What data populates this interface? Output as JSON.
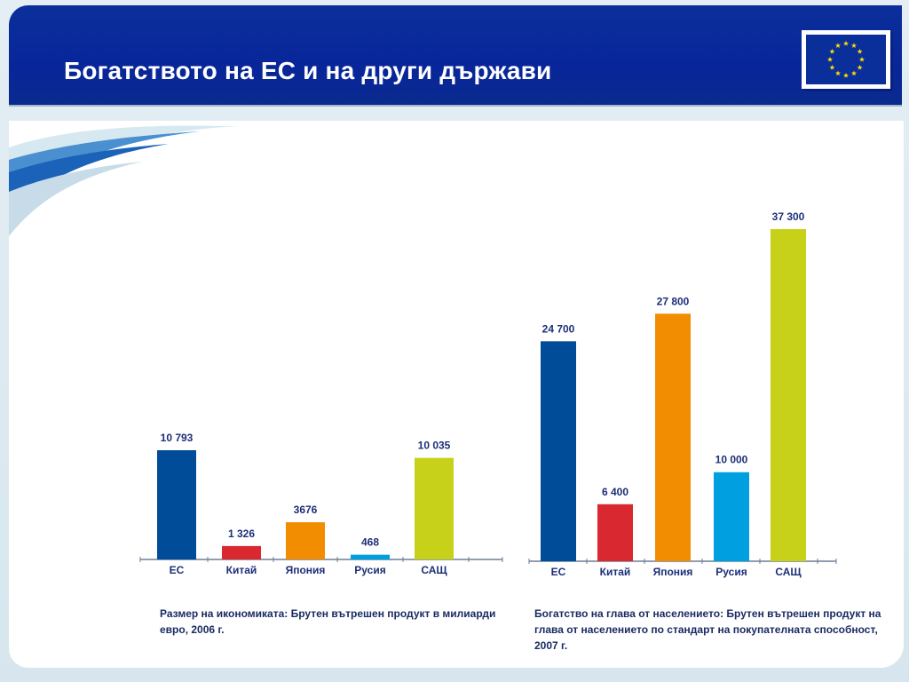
{
  "slide": {
    "title": "Богатството на ЕС и на други държави"
  },
  "colors": {
    "header": "#0a2b95",
    "ec": "#004c99",
    "china": "#d9282f",
    "japan": "#f28c00",
    "russia": "#00a0e0",
    "usa": "#c7d11a"
  },
  "icons": {
    "flag": "eu-flag-icon"
  },
  "chart_data": [
    {
      "type": "bar",
      "categories": [
        "ЕС",
        "Китай",
        "Япония",
        "Русия",
        "САЩ"
      ],
      "values": [
        10793,
        1326,
        3676,
        468,
        10035
      ],
      "value_labels": [
        "10 793",
        "1 326",
        "3676",
        "468",
        "10 035"
      ],
      "caption": "Размер на икономиката: Брутен вътрешен продукт в милиарди евро, 2006 г.",
      "grid": false,
      "legend": "none"
    },
    {
      "type": "bar",
      "categories": [
        "ЕС",
        "Китай",
        "Япония",
        "Русия",
        "САЩ"
      ],
      "values": [
        24700,
        6400,
        27800,
        10000,
        37300
      ],
      "value_labels": [
        "24 700",
        "6 400",
        "27 800",
        "10 000",
        "37 300"
      ],
      "caption": "Богатство на глава от населението: Брутен вътрешен продукт на глава от населението по стандарт на покупателната способност, 2007 г.",
      "grid": false,
      "legend": "none"
    }
  ]
}
